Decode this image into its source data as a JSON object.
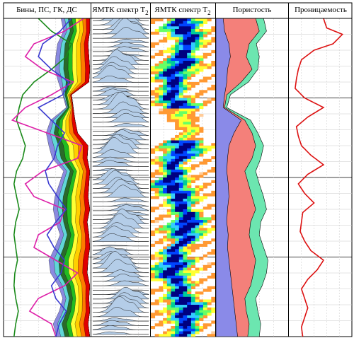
{
  "chart_data": {
    "type": "well-log",
    "depth_range": [
      0,
      100
    ],
    "tracks": [
      {
        "id": "composite",
        "title": "Бины, ПС, ГК, ДС",
        "curves": [
          {
            "name": "",
            "color": "#1a8a1a",
            "x": [
              0.4,
              0.55,
              0.78,
              0.72,
              0.55,
              0.35,
              0.22,
              0.18,
              0.15,
              0.2,
              0.25,
              0.22,
              0.15,
              0.12,
              0.15,
              0.18,
              0.14,
              0.12,
              0.14,
              0.16,
              0.13,
              0.12,
              0.14,
              0.17,
              0.14,
              0.12
            ],
            "depth": [
              0,
              4,
              8,
              12,
              16,
              20,
              24,
              28,
              32,
              36,
              40,
              44,
              48,
              52,
              56,
              60,
              64,
              68,
              72,
              76,
              80,
              84,
              88,
              92,
              96,
              100
            ]
          },
          {
            "name": "",
            "color": "#dd1fa8",
            "x": [
              0.92,
              0.7,
              0.35,
              0.25,
              0.45,
              0.8,
              0.55,
              0.25,
              0.1,
              0.5,
              0.9,
              0.85,
              0.45,
              0.25,
              0.35,
              0.7,
              0.65,
              0.4,
              0.35,
              0.6,
              0.85,
              0.7,
              0.4,
              0.3,
              0.55,
              0.6
            ],
            "depth": [
              0,
              4,
              8,
              12,
              16,
              20,
              24,
              28,
              32,
              36,
              40,
              44,
              48,
              52,
              56,
              60,
              64,
              68,
              72,
              76,
              80,
              84,
              88,
              92,
              96,
              100
            ]
          },
          {
            "name": "",
            "color": "#3a3ad0",
            "x": [
              0.78,
              0.65,
              0.45,
              0.4,
              0.55,
              0.75,
              0.68,
              0.4,
              0.55,
              0.7,
              0.62,
              0.58,
              0.48,
              0.52,
              0.62,
              0.72,
              0.6,
              0.5,
              0.58,
              0.7,
              0.66,
              0.55,
              0.6,
              0.72,
              0.64,
              0.6
            ],
            "depth": [
              0,
              4,
              8,
              12,
              16,
              20,
              24,
              28,
              32,
              36,
              40,
              44,
              48,
              52,
              56,
              60,
              64,
              68,
              72,
              76,
              80,
              84,
              88,
              92,
              96,
              100
            ]
          }
        ],
        "bins": {
          "colors": [
            "#e00000",
            "#ff7a00",
            "#ffd000",
            "#ffff33",
            "#22bb22",
            "#2a6a2a",
            "#60d6d6",
            "#8a8ae0"
          ],
          "right_edge": [
            0.99,
            0.99,
            0.97,
            0.98,
            0.99,
            0.98,
            0.78,
            0.8,
            0.82,
            0.85,
            0.97,
            0.96,
            0.99,
            0.98,
            0.97,
            0.99,
            0.96,
            0.98,
            0.99,
            0.97,
            0.96,
            0.99,
            0.98,
            0.99,
            0.97,
            0.99
          ],
          "total": [
            0.33,
            0.3,
            0.35,
            0.38,
            0.4,
            0.35,
            0.1,
            0.08,
            0.28,
            0.36,
            0.45,
            0.4,
            0.3,
            0.34,
            0.38,
            0.42,
            0.36,
            0.33,
            0.4,
            0.45,
            0.42,
            0.36,
            0.3,
            0.35,
            0.4,
            0.38
          ]
        }
      },
      {
        "id": "nmr-spectrum-waves",
        "title": "ЯМТК спектр T",
        "subscript": "2",
        "fill": "#b4cde8"
      },
      {
        "id": "nmr-spectrum-image",
        "title": "ЯМТК спектр T",
        "subscript": "2",
        "colors": [
          "#ffcc99",
          "#ff9933",
          "#ffff33",
          "#66ff66",
          "#00cc99",
          "#33ccff",
          "#0044ff",
          "#000080"
        ]
      },
      {
        "id": "porosity",
        "title": "Пористость",
        "colors": [
          "#8a8ae8",
          "#f4807a",
          "#6ce6b0"
        ],
        "depth": [
          0,
          4,
          8,
          12,
          16,
          20,
          24,
          28,
          32,
          36,
          40,
          44,
          48,
          52,
          56,
          60,
          64,
          68,
          72,
          76,
          80,
          84,
          88,
          92,
          96,
          100
        ],
        "blue": [
          0.1,
          0.12,
          0.18,
          0.2,
          0.16,
          0.15,
          0.12,
          0.1,
          0.35,
          0.25,
          0.18,
          0.16,
          0.15,
          0.17,
          0.18,
          0.16,
          0.15,
          0.17,
          0.16,
          0.18,
          0.2,
          0.22,
          0.24,
          0.26,
          0.28,
          0.3
        ],
        "red": [
          0.55,
          0.6,
          0.46,
          0.42,
          0.5,
          0.35,
          0.15,
          0.12,
          0.4,
          0.5,
          0.55,
          0.5,
          0.4,
          0.45,
          0.5,
          0.55,
          0.48,
          0.46,
          0.5,
          0.55,
          0.52,
          0.48,
          0.4,
          0.42,
          0.46,
          0.44
        ],
        "green": [
          0.66,
          0.7,
          0.56,
          0.6,
          0.58,
          0.45,
          0.2,
          0.15,
          0.48,
          0.58,
          0.66,
          0.62,
          0.55,
          0.6,
          0.66,
          0.7,
          0.62,
          0.6,
          0.66,
          0.72,
          0.7,
          0.64,
          0.55,
          0.58,
          0.62,
          0.6
        ]
      },
      {
        "id": "permeability",
        "title": "Проницаемость",
        "color": "#dd1111",
        "depth": [
          0,
          3,
          5,
          8,
          10,
          13,
          16,
          19,
          22,
          25,
          28,
          31,
          34,
          37,
          40,
          43,
          46,
          49,
          52,
          55,
          58,
          61,
          64,
          67,
          70,
          73,
          76,
          79,
          82,
          85,
          88,
          91,
          94,
          97,
          100
        ],
        "x": [
          0.55,
          0.6,
          0.85,
          0.7,
          0.4,
          0.2,
          0.15,
          0.12,
          0.1,
          0.25,
          0.55,
          0.3,
          0.12,
          0.15,
          0.2,
          0.35,
          0.55,
          0.3,
          0.15,
          0.25,
          0.4,
          0.22,
          0.2,
          0.18,
          0.25,
          0.35,
          0.55,
          0.45,
          0.3,
          0.2,
          0.25,
          0.3,
          0.25,
          0.2,
          0.22
        ]
      }
    ]
  }
}
